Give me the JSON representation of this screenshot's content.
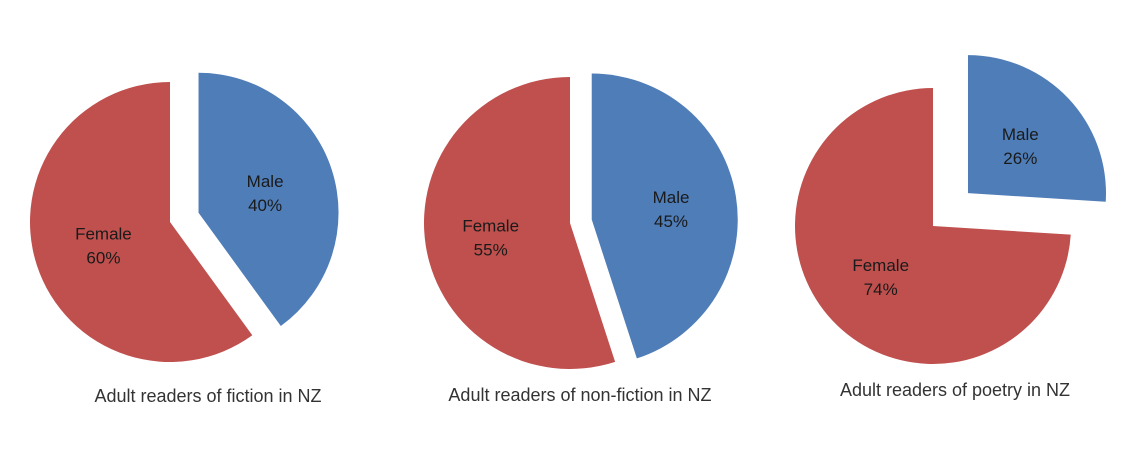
{
  "chart_data": [
    {
      "type": "pie",
      "title": "Adult readers of fiction in NZ",
      "slices": [
        {
          "name": "Male",
          "value": 40,
          "label": "40%",
          "color": "#4f7db8",
          "exploded": true
        },
        {
          "name": "Female",
          "value": 60,
          "label": "60%",
          "color": "#bf504e",
          "exploded": false
        }
      ]
    },
    {
      "type": "pie",
      "title": "Adult readers of non-fiction in NZ",
      "slices": [
        {
          "name": "Male",
          "value": 45,
          "label": "45%",
          "color": "#4f7db8",
          "exploded": true
        },
        {
          "name": "Female",
          "value": 55,
          "label": "55%",
          "color": "#bf504e",
          "exploded": false
        }
      ]
    },
    {
      "type": "pie",
      "title": "Adult readers of poetry in NZ",
      "slices": [
        {
          "name": "Male",
          "value": 26,
          "label": "26%",
          "color": "#4f7db8",
          "exploded": true
        },
        {
          "name": "Female",
          "value": 74,
          "label": "74%",
          "color": "#bf504e",
          "exploded": false
        }
      ]
    }
  ]
}
